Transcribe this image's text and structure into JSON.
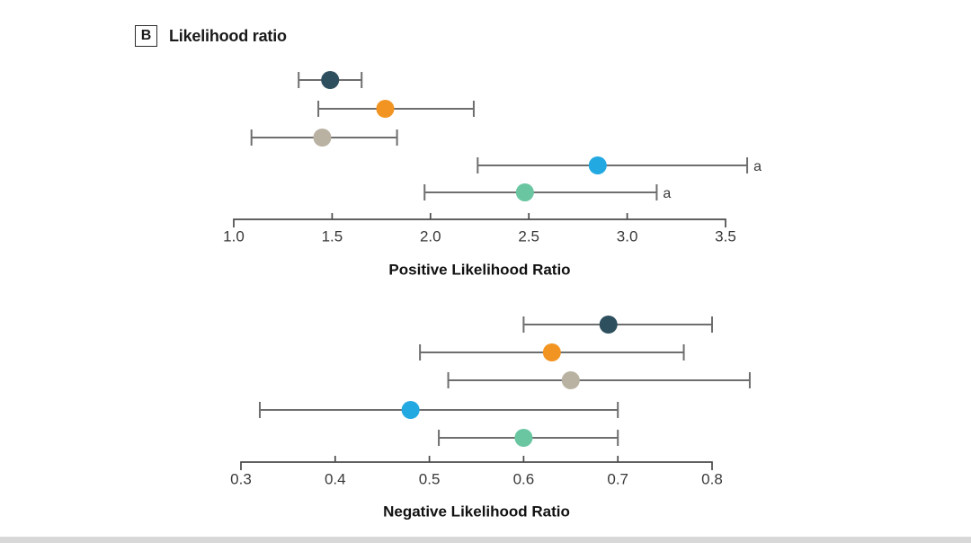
{
  "panel": {
    "label": "B",
    "title": "Likelihood ratio"
  },
  "colors": {
    "marker_dark_teal": "#2D4F5E",
    "marker_orange": "#F29422",
    "marker_tan": "#B9B1A1",
    "marker_blue": "#23A9E1",
    "marker_green": "#69C6A1",
    "error_bar": "#6E6E6E",
    "axis": "#4A4A4A",
    "tick_text": "#3A3A3A",
    "title_text": "#111111"
  },
  "chart_data": [
    {
      "type": "scatter",
      "variant": "forest-plot",
      "orientation": "horizontal",
      "xlabel": "Positive Likelihood Ratio",
      "xlim": [
        1.0,
        3.5
      ],
      "ticks": [
        1.0,
        1.5,
        2.0,
        2.5,
        3.0,
        3.5
      ],
      "tick_labels": [
        "1.0",
        "1.5",
        "2.0",
        "2.5",
        "3.0",
        "3.5"
      ],
      "grid": false,
      "legend": false,
      "series": [
        {
          "value": 1.49,
          "ci": [
            1.33,
            1.65
          ],
          "color": "#2D4F5E"
        },
        {
          "value": 1.77,
          "ci": [
            1.43,
            2.22
          ],
          "color": "#F29422"
        },
        {
          "value": 1.45,
          "ci": [
            1.09,
            1.83
          ],
          "color": "#B9B1A1"
        },
        {
          "value": 2.85,
          "ci": [
            2.24,
            3.61
          ],
          "color": "#23A9E1",
          "footnote": "a"
        },
        {
          "value": 2.48,
          "ci": [
            1.97,
            3.15
          ],
          "color": "#69C6A1",
          "footnote": "a"
        }
      ]
    },
    {
      "type": "scatter",
      "variant": "forest-plot",
      "orientation": "horizontal",
      "xlabel": "Negative Likelihood Ratio",
      "xlim": [
        0.3,
        0.8
      ],
      "ticks": [
        0.3,
        0.4,
        0.5,
        0.6,
        0.7,
        0.8
      ],
      "tick_labels": [
        "0.3",
        "0.4",
        "0.5",
        "0.6",
        "0.7",
        "0.8"
      ],
      "grid": false,
      "legend": false,
      "series": [
        {
          "value": 0.69,
          "ci": [
            0.6,
            0.8
          ],
          "color": "#2D4F5E"
        },
        {
          "value": 0.63,
          "ci": [
            0.49,
            0.77
          ],
          "color": "#F29422"
        },
        {
          "value": 0.65,
          "ci": [
            0.52,
            0.84
          ],
          "color": "#B9B1A1"
        },
        {
          "value": 0.48,
          "ci": [
            0.32,
            0.7
          ],
          "color": "#23A9E1"
        },
        {
          "value": 0.6,
          "ci": [
            0.51,
            0.7
          ],
          "color": "#69C6A1"
        }
      ]
    }
  ]
}
